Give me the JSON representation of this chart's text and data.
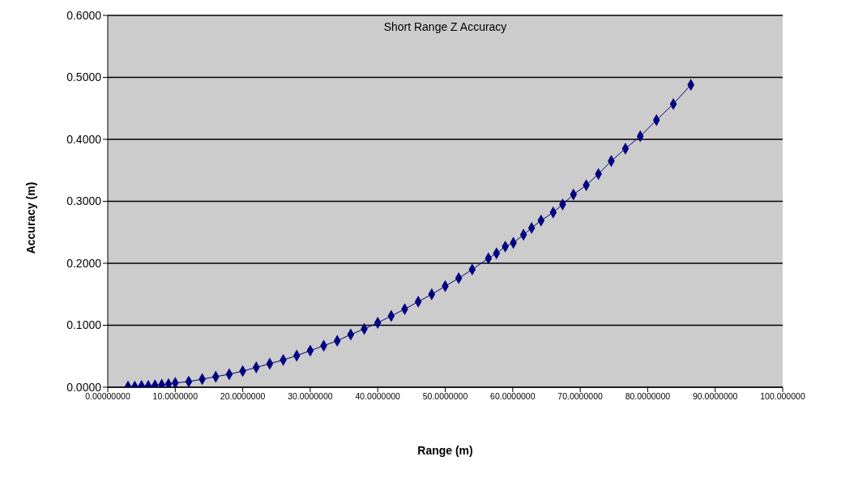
{
  "chart_data": {
    "type": "scatter",
    "title": "Short Range Z Accuracy",
    "xlabel": "Range (m)",
    "ylabel": "Accuracy (m)",
    "series": [
      {
        "type": "line",
        "color": "#000080",
        "x": [
          3,
          4,
          5,
          6,
          7,
          8,
          9,
          10,
          12,
          14,
          16,
          18,
          20,
          22,
          24,
          26,
          28,
          30,
          32,
          34,
          36,
          38,
          40,
          42,
          44,
          46,
          48,
          50,
          52,
          54,
          56.4,
          57.6,
          58.9,
          60.1,
          61.6,
          62.8,
          64.2,
          66.0,
          67.4,
          69.0,
          70.9,
          72.7,
          74.6,
          76.7,
          78.9,
          81.3,
          83.8,
          86.4
        ],
        "values": [
          0.001,
          0.001,
          0.002,
          0.002,
          0.003,
          0.004,
          0.005,
          0.007,
          0.009,
          0.013,
          0.017,
          0.021,
          0.026,
          0.032,
          0.038,
          0.044,
          0.051,
          0.059,
          0.067,
          0.075,
          0.085,
          0.094,
          0.104,
          0.115,
          0.126,
          0.138,
          0.15,
          0.163,
          0.176,
          0.19,
          0.208,
          0.216,
          0.227,
          0.233,
          0.246,
          0.257,
          0.269,
          0.282,
          0.295,
          0.311,
          0.326,
          0.344,
          0.365,
          0.385,
          0.405,
          0.431,
          0.457,
          0.488
        ]
      }
    ],
    "xlim": [
      0,
      100
    ],
    "xticks": [
      {
        "value": 0,
        "label": "0.00000000"
      },
      {
        "value": 10,
        "label": "10.0000000"
      },
      {
        "value": 20,
        "label": "20.0000000"
      },
      {
        "value": 30,
        "label": "30.0000000"
      },
      {
        "value": 40,
        "label": "40.0000000"
      },
      {
        "value": 50,
        "label": "50.0000000"
      },
      {
        "value": 60,
        "label": "60.0000000"
      },
      {
        "value": 70,
        "label": "70.0000000"
      },
      {
        "value": 80,
        "label": "80.0000000"
      },
      {
        "value": 90,
        "label": "90.0000000"
      },
      {
        "value": 100,
        "label": "100.000000"
      }
    ],
    "ylim": [
      0,
      0.6
    ],
    "yticks": [
      {
        "value": 0,
        "label": "0.0000"
      },
      {
        "value": 0.1,
        "label": "0.1000"
      },
      {
        "value": 0.2,
        "label": "0.2000"
      },
      {
        "value": 0.3,
        "label": "0.3000"
      },
      {
        "value": 0.4,
        "label": "0.4000"
      },
      {
        "value": 0.5,
        "label": "0.5000"
      },
      {
        "value": 0.6,
        "label": "0.6000"
      }
    ],
    "grid": "y",
    "marker": "diamond",
    "line_style": "solid"
  }
}
